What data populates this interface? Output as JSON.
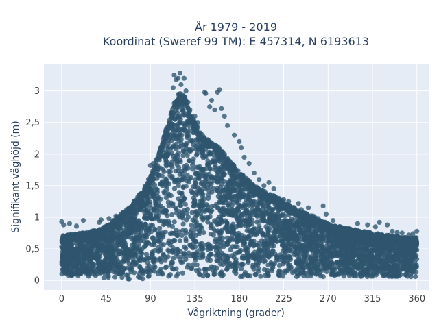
{
  "chart_data": {
    "type": "scatter",
    "title_lines": [
      "År 1979 - 2019",
      "Koordinat (Sweref 99 TM): E 457314, N 6193613"
    ],
    "xlabel": "Vågriktning (grader)",
    "ylabel": "Signifikant våghöjd (m)",
    "xlim": [
      -18,
      372
    ],
    "ylim": [
      -0.15,
      3.43
    ],
    "xticks": [
      0,
      45,
      90,
      135,
      180,
      225,
      270,
      315,
      360
    ],
    "xtick_labels": [
      "0",
      "45",
      "90",
      "135",
      "180",
      "225",
      "270",
      "315",
      "360"
    ],
    "yticks": [
      0,
      0.5,
      1,
      1.5,
      2,
      2.5,
      3
    ],
    "ytick_labels": [
      "0",
      "0,5",
      "1",
      "1,5",
      "2",
      "2,5",
      "3"
    ],
    "grid": true,
    "marker_color": "#2e556e",
    "plot_background": "#e5ecf6",
    "envelope": {
      "direction": [
        0,
        10,
        20,
        30,
        40,
        50,
        60,
        70,
        80,
        90,
        100,
        110,
        115,
        120,
        125,
        130,
        140,
        150,
        160,
        170,
        180,
        190,
        200,
        210,
        220,
        230,
        240,
        250,
        260,
        270,
        280,
        290,
        300,
        310,
        320,
        330,
        340,
        350,
        360
      ],
      "max_height": [
        0.72,
        0.73,
        0.75,
        0.78,
        0.82,
        0.92,
        1.05,
        1.18,
        1.4,
        1.65,
        2.1,
        2.6,
        2.85,
        3.0,
        2.9,
        2.65,
        2.35,
        2.2,
        2.1,
        1.9,
        1.72,
        1.58,
        1.45,
        1.38,
        1.3,
        1.2,
        1.12,
        1.05,
        0.97,
        0.9,
        0.86,
        0.82,
        0.8,
        0.77,
        0.74,
        0.72,
        0.7,
        0.68,
        0.68
      ]
    },
    "outliers": [
      [
        0,
        0.93
      ],
      [
        2,
        0.88
      ],
      [
        8,
        0.9
      ],
      [
        15,
        0.86
      ],
      [
        22,
        0.95
      ],
      [
        38,
        0.92
      ],
      [
        40,
        0.96
      ],
      [
        48,
        0.98
      ],
      [
        55,
        1.02
      ],
      [
        80,
        1.35
      ],
      [
        84,
        1.45
      ],
      [
        88,
        1.6
      ],
      [
        90,
        1.82
      ],
      [
        93,
        1.85
      ],
      [
        97,
        1.82
      ],
      [
        100,
        1.78
      ],
      [
        113,
        3.05
      ],
      [
        114,
        3.25
      ],
      [
        116,
        3.18
      ],
      [
        118,
        3.2
      ],
      [
        120,
        3.28
      ],
      [
        121,
        3.1
      ],
      [
        124,
        3.2
      ],
      [
        125,
        2.9
      ],
      [
        126,
        3.0
      ],
      [
        128,
        2.82
      ],
      [
        130,
        2.7
      ],
      [
        135,
        2.6
      ],
      [
        138,
        2.5
      ],
      [
        145,
        2.98
      ],
      [
        146,
        2.96
      ],
      [
        150,
        2.75
      ],
      [
        152,
        2.85
      ],
      [
        155,
        2.7
      ],
      [
        158,
        2.98
      ],
      [
        160,
        3.02
      ],
      [
        162,
        2.72
      ],
      [
        165,
        2.6
      ],
      [
        168,
        2.45
      ],
      [
        175,
        2.3
      ],
      [
        180,
        2.2
      ],
      [
        182,
        2.1
      ],
      [
        185,
        1.95
      ],
      [
        190,
        1.85
      ],
      [
        195,
        1.7
      ],
      [
        200,
        1.6
      ],
      [
        205,
        1.5
      ],
      [
        210,
        1.55
      ],
      [
        215,
        1.45
      ],
      [
        220,
        1.3
      ],
      [
        225,
        1.28
      ],
      [
        230,
        1.25
      ],
      [
        240,
        1.22
      ],
      [
        243,
        1.12
      ],
      [
        250,
        1.15
      ],
      [
        255,
        1.02
      ],
      [
        260,
        0.98
      ],
      [
        265,
        1.18
      ],
      [
        268,
        1.05
      ],
      [
        275,
        0.95
      ],
      [
        282,
        0.85
      ],
      [
        290,
        0.83
      ],
      [
        300,
        0.9
      ],
      [
        310,
        0.88
      ],
      [
        318,
        0.85
      ],
      [
        322,
        0.92
      ],
      [
        330,
        0.88
      ],
      [
        335,
        0.78
      ],
      [
        340,
        0.76
      ],
      [
        345,
        0.75
      ],
      [
        352,
        0.72
      ],
      [
        356,
        0.74
      ],
      [
        360,
        0.78
      ]
    ]
  }
}
